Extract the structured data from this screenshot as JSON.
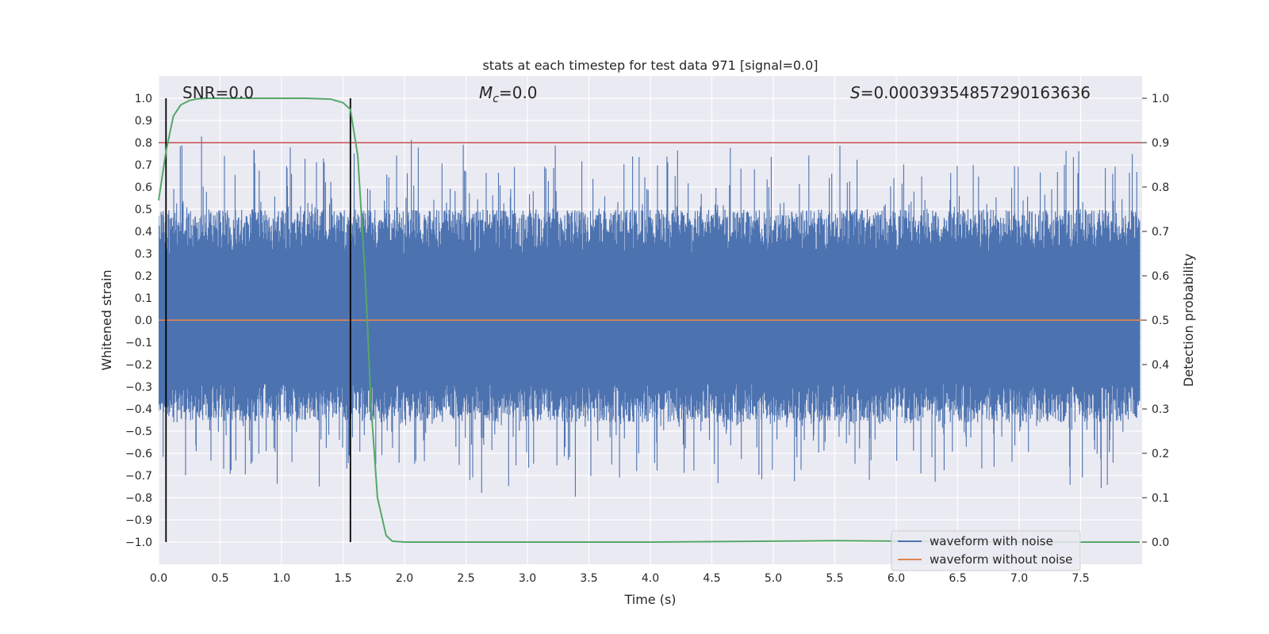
{
  "chart_data": {
    "type": "line",
    "title": "stats at each timestep for test data 971 [signal=0.0]",
    "xlabel": "Time (s)",
    "ylabel_left": "Whitened strain",
    "ylabel_right": "Detection probability",
    "xlim": [
      0.0,
      8.0
    ],
    "ylim_left": [
      -1.1,
      1.1
    ],
    "ylim_right": [
      -0.05,
      1.05
    ],
    "x_ticks": [
      "0.0",
      "0.5",
      "1.0",
      "1.5",
      "2.0",
      "2.5",
      "3.0",
      "3.5",
      "4.0",
      "4.5",
      "5.0",
      "5.5",
      "6.0",
      "6.5",
      "7.0",
      "7.5"
    ],
    "y_ticks_left": [
      "1.0",
      "0.9",
      "0.8",
      "0.7",
      "0.6",
      "0.5",
      "0.4",
      "0.3",
      "0.2",
      "0.1",
      "0.0",
      "−0.1",
      "−0.2",
      "−0.3",
      "−0.4",
      "−0.5",
      "−0.6",
      "−0.7",
      "−0.8",
      "−0.9",
      "−1.0"
    ],
    "y_ticks_right": [
      "1.0",
      "0.9",
      "0.8",
      "0.7",
      "0.6",
      "0.5",
      "0.4",
      "0.3",
      "0.2",
      "0.1",
      "0.0"
    ],
    "annotations": {
      "snr": "SNR=0.0",
      "mc_symbol": "M",
      "mc_sub": "c",
      "mc_value": "=0.0",
      "s_symbol": "S",
      "s_value": "=0.0003935485729016363​6"
    },
    "legend": {
      "position": "lower-right",
      "entries": [
        "waveform with noise",
        "waveform without noise"
      ]
    },
    "colors": {
      "noise": "#4c72b0",
      "clean": "#dd8452",
      "prob": "#55a868",
      "threshold": "#c44e52",
      "marker": "#000000",
      "plot_bg": "#eaeaf2"
    },
    "threshold_probability": 0.9,
    "vertical_markers_s": [
      0.06,
      1.56
    ],
    "noise_series": {
      "name": "waveform with noise",
      "sample_rate_hz": 2048,
      "envelope": [
        -0.85,
        0.93
      ],
      "typical_range": [
        -0.45,
        0.55
      ]
    },
    "clean_series": {
      "name": "waveform without noise",
      "value": 0.0
    },
    "probability_series": {
      "name": "Detection probability",
      "x": [
        0.0,
        0.06,
        0.12,
        0.18,
        0.25,
        0.32,
        0.4,
        0.6,
        0.9,
        1.2,
        1.4,
        1.5,
        1.56,
        1.62,
        1.68,
        1.73,
        1.78,
        1.85,
        1.9,
        2.0,
        3.0,
        4.0,
        5.0,
        5.5,
        6.0,
        7.0,
        7.98
      ],
      "y": [
        0.77,
        0.88,
        0.96,
        0.985,
        0.995,
        0.999,
        1.0,
        1.0,
        1.0,
        1.0,
        0.998,
        0.99,
        0.975,
        0.87,
        0.6,
        0.3,
        0.1,
        0.015,
        0.002,
        0.0,
        0.0,
        0.0,
        0.002,
        0.003,
        0.002,
        0.0,
        0.0
      ]
    }
  }
}
